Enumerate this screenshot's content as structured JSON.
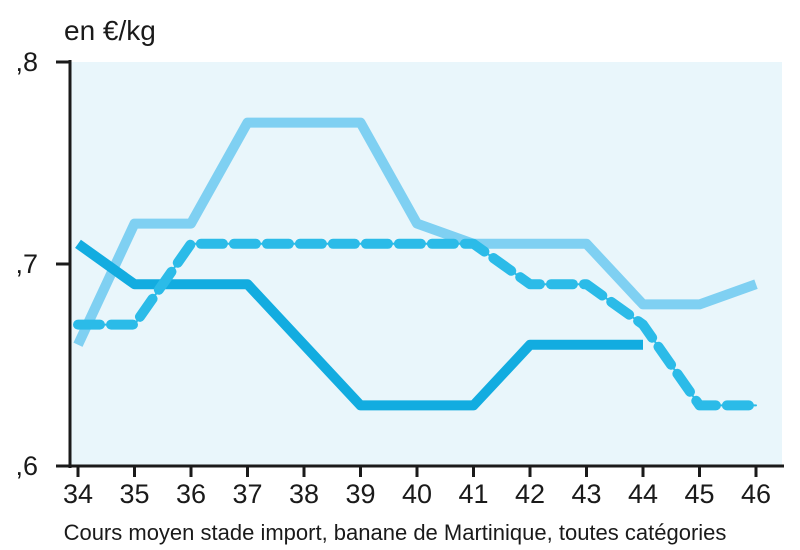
{
  "chart_data": {
    "type": "line",
    "unit_label": "en €/kg",
    "caption": "Cours moyen stade import, banane de Martinique, toutes catégories",
    "x": [
      34,
      35,
      36,
      37,
      38,
      39,
      40,
      41,
      42,
      43,
      44,
      45,
      46
    ],
    "x_tick_labels": [
      "34",
      "35",
      "36",
      "37",
      "38",
      "39",
      "40",
      "41",
      "42",
      "43",
      "44",
      "45",
      "46"
    ],
    "y_tick_labels": [
      ",6",
      ",7",
      ",8"
    ],
    "ylim": [
      0.6,
      0.8
    ],
    "grid": false,
    "plot_background": "#e9f6fb",
    "series": [
      {
        "color": "#7fd0f2",
        "style": "solid",
        "x": [
          34,
          35,
          36,
          37,
          38,
          39,
          40,
          41,
          42,
          43,
          44,
          45,
          46
        ],
        "values": [
          0.66,
          0.72,
          0.72,
          0.77,
          0.77,
          0.77,
          0.72,
          0.71,
          0.71,
          0.71,
          0.68,
          0.68,
          0.69
        ]
      },
      {
        "color": "#12ace0",
        "style": "solid",
        "x": [
          34,
          35,
          36,
          37,
          38,
          39,
          40,
          41,
          42,
          43,
          44
        ],
        "values": [
          0.71,
          0.69,
          0.69,
          0.69,
          0.66,
          0.63,
          0.63,
          0.63,
          0.66,
          0.66,
          0.66
        ]
      },
      {
        "color": "#2bbbe8",
        "style": "dashed",
        "x": [
          34,
          35,
          36,
          37,
          38,
          39,
          40,
          41,
          42,
          43,
          44,
          45,
          46
        ],
        "values": [
          0.67,
          0.67,
          0.71,
          0.71,
          0.71,
          0.71,
          0.71,
          0.71,
          0.69,
          0.69,
          0.67,
          0.63,
          0.63
        ]
      }
    ]
  }
}
